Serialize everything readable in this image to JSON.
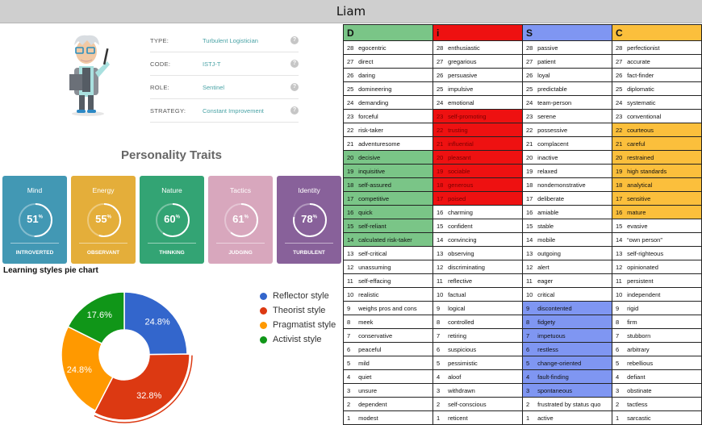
{
  "window_title": "Liam",
  "profile": {
    "rows": [
      {
        "key": "TYPE:",
        "value": "Turbulent Logistician"
      },
      {
        "key": "CODE:",
        "value": "ISTJ-T"
      },
      {
        "key": "ROLE:",
        "value": "Sentinel"
      },
      {
        "key": "STRATEGY:",
        "value": "Constant Improvement"
      }
    ],
    "help_glyph": "?"
  },
  "traits": {
    "title": "Personality Traits",
    "cards": [
      {
        "label": "Mind",
        "value": "51",
        "pct_sign": "%",
        "trait": "INTROVERTED",
        "color": "#4298b4",
        "fraction": 0.51
      },
      {
        "label": "Energy",
        "value": "55",
        "pct_sign": "%",
        "trait": "OBSERVANT",
        "color": "#e4ae3a",
        "fraction": 0.55
      },
      {
        "label": "Nature",
        "value": "60",
        "pct_sign": "%",
        "trait": "THINKING",
        "color": "#33a474",
        "fraction": 0.6
      },
      {
        "label": "Tactics",
        "value": "61",
        "pct_sign": "%",
        "trait": "JUDGING",
        "color": "#d8a7bd",
        "fraction": 0.61
      },
      {
        "label": "Identity",
        "value": "78",
        "pct_sign": "%",
        "trait": "TURBULENT",
        "color": "#88619a",
        "fraction": 0.78
      }
    ]
  },
  "chart_data": {
    "type": "pie",
    "title": "Learning styles pie chart",
    "labels": [
      "Reflector style",
      "Theorist style",
      "Pragmatist style",
      "Activist style"
    ],
    "values": [
      24.8,
      32.8,
      24.8,
      17.6
    ],
    "value_labels": [
      "24.8%",
      "32.8%",
      "24.8%",
      "17.6%"
    ],
    "colors": [
      "#3366cc",
      "#dc3912",
      "#ff9900",
      "#109618"
    ],
    "donut": true,
    "legend": "right"
  },
  "disc": {
    "headers": [
      {
        "letter": "D",
        "color": "#7ac587"
      },
      {
        "letter": "i",
        "color": "#ee1111"
      },
      {
        "letter": "S",
        "color": "#7f96f2"
      },
      {
        "letter": "C",
        "color": "#fbbf3c"
      }
    ],
    "rows": [
      [
        [
          "28",
          "egocentric"
        ],
        [
          "28",
          "enthusiastic"
        ],
        [
          "28",
          "passive"
        ],
        [
          "28",
          "perfectionist"
        ]
      ],
      [
        [
          "27",
          "direct"
        ],
        [
          "27",
          "gregarious"
        ],
        [
          "27",
          "patient"
        ],
        [
          "27",
          "accurate"
        ]
      ],
      [
        [
          "26",
          "daring"
        ],
        [
          "26",
          "persuasive"
        ],
        [
          "26",
          "loyal"
        ],
        [
          "26",
          "fact-finder"
        ]
      ],
      [
        [
          "25",
          "domineering"
        ],
        [
          "25",
          "impulsive"
        ],
        [
          "25",
          "predictable"
        ],
        [
          "25",
          "diplomatic"
        ]
      ],
      [
        [
          "24",
          "demanding"
        ],
        [
          "24",
          "emotional"
        ],
        [
          "24",
          "team-person"
        ],
        [
          "24",
          "systematic"
        ]
      ],
      [
        [
          "23",
          "forceful"
        ],
        [
          "23",
          "self-promoting"
        ],
        [
          "23",
          "serene"
        ],
        [
          "23",
          "conventional"
        ]
      ],
      [
        [
          "22",
          "risk-taker"
        ],
        [
          "22",
          "trusting"
        ],
        [
          "22",
          "possessive"
        ],
        [
          "22",
          "courteous"
        ]
      ],
      [
        [
          "21",
          "adventuresome"
        ],
        [
          "21",
          "influential"
        ],
        [
          "21",
          "complacent"
        ],
        [
          "21",
          "careful"
        ]
      ],
      [
        [
          "20",
          "decisive"
        ],
        [
          "20",
          "pleasant"
        ],
        [
          "20",
          "inactive"
        ],
        [
          "20",
          "restrained"
        ]
      ],
      [
        [
          "19",
          "inquisitive"
        ],
        [
          "19",
          "sociable"
        ],
        [
          "19",
          "relaxed"
        ],
        [
          "19",
          "high standards"
        ]
      ],
      [
        [
          "18",
          "self-assured"
        ],
        [
          "18",
          "generous"
        ],
        [
          "18",
          "nondemonstrative"
        ],
        [
          "18",
          "analytical"
        ]
      ],
      [
        [
          "17",
          "competitive"
        ],
        [
          "17",
          "poised"
        ],
        [
          "17",
          "deliberate"
        ],
        [
          "17",
          "sensitive"
        ]
      ],
      [
        [
          "16",
          "quick"
        ],
        [
          "16",
          "charming"
        ],
        [
          "16",
          "amiable"
        ],
        [
          "16",
          "mature"
        ]
      ],
      [
        [
          "15",
          "self-reliant"
        ],
        [
          "15",
          "confident"
        ],
        [
          "15",
          "stable"
        ],
        [
          "15",
          "evasive"
        ]
      ],
      [
        [
          "14",
          "calculated risk-taker"
        ],
        [
          "14",
          "convincing"
        ],
        [
          "14",
          "mobile"
        ],
        [
          "14",
          "“own person”"
        ]
      ],
      [
        [
          "13",
          "self-critical"
        ],
        [
          "13",
          "observing"
        ],
        [
          "13",
          "outgoing"
        ],
        [
          "13",
          "self-righteous"
        ]
      ],
      [
        [
          "12",
          "unassuming"
        ],
        [
          "12",
          "discriminating"
        ],
        [
          "12",
          "alert"
        ],
        [
          "12",
          "opinionated"
        ]
      ],
      [
        [
          "11",
          "self-effacing"
        ],
        [
          "11",
          "reflective"
        ],
        [
          "11",
          "eager"
        ],
        [
          "11",
          "persistent"
        ]
      ],
      [
        [
          "10",
          "realistic"
        ],
        [
          "10",
          "factual"
        ],
        [
          "10",
          "critical"
        ],
        [
          "10",
          "independent"
        ]
      ],
      [
        [
          "9",
          "weighs pros and cons"
        ],
        [
          "9",
          "logical"
        ],
        [
          "9",
          "discontented"
        ],
        [
          "9",
          "rigid"
        ]
      ],
      [
        [
          "8",
          "meek"
        ],
        [
          "8",
          "controlled"
        ],
        [
          "8",
          "fidgety"
        ],
        [
          "8",
          "firm"
        ]
      ],
      [
        [
          "7",
          "conservative"
        ],
        [
          "7",
          "retiring"
        ],
        [
          "7",
          "impetuous"
        ],
        [
          "7",
          "stubborn"
        ]
      ],
      [
        [
          "6",
          "peaceful"
        ],
        [
          "6",
          "suspicious"
        ],
        [
          "6",
          "restless"
        ],
        [
          "6",
          "arbitrary"
        ]
      ],
      [
        [
          "5",
          "mild"
        ],
        [
          "5",
          "pessimistic"
        ],
        [
          "5",
          "change-oriented"
        ],
        [
          "5",
          "rebellious"
        ]
      ],
      [
        [
          "4",
          "quiet"
        ],
        [
          "4",
          "aloof"
        ],
        [
          "4",
          "fault-finding"
        ],
        [
          "4",
          "defiant"
        ]
      ],
      [
        [
          "3",
          "unsure"
        ],
        [
          "3",
          "withdrawn"
        ],
        [
          "3",
          "spontaneous"
        ],
        [
          "3",
          "obstinate"
        ]
      ],
      [
        [
          "2",
          "dependent"
        ],
        [
          "2",
          "self-conscious"
        ],
        [
          "2",
          "frustrated by status quo"
        ],
        [
          "2",
          "tactless"
        ]
      ],
      [
        [
          "1",
          "modest"
        ],
        [
          "1",
          "reticent"
        ],
        [
          "1",
          "active"
        ],
        [
          "1",
          "sarcastic"
        ]
      ]
    ],
    "highlight_ranges": [
      {
        "column": 0,
        "from_score": 20,
        "to_score": 14
      },
      {
        "column": 1,
        "from_score": 23,
        "to_score": 17
      },
      {
        "column": 2,
        "from_score": 9,
        "to_score": 3
      },
      {
        "column": 3,
        "from_score": 22,
        "to_score": 16
      }
    ]
  }
}
